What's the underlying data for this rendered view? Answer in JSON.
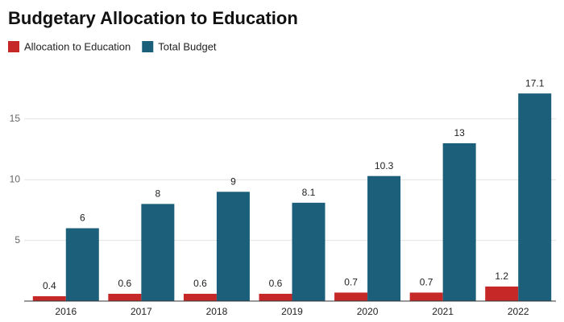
{
  "chart_data": {
    "type": "bar",
    "title": "Budgetary Allocation to Education",
    "categories": [
      "2016",
      "2017",
      "2018",
      "2019",
      "2020",
      "2021",
      "2022"
    ],
    "series": [
      {
        "name": "Allocation to Education",
        "color": "#c62828",
        "values": [
          0.4,
          0.6,
          0.6,
          0.6,
          0.7,
          0.7,
          1.2
        ]
      },
      {
        "name": "Total Budget",
        "color": "#1b5f7b",
        "values": [
          6,
          8,
          9,
          8.1,
          10.3,
          13,
          17.1
        ]
      }
    ],
    "ylim": [
      0,
      18.5
    ],
    "yticks": [
      5,
      10,
      15
    ],
    "grid": true,
    "legend": "top-left"
  }
}
